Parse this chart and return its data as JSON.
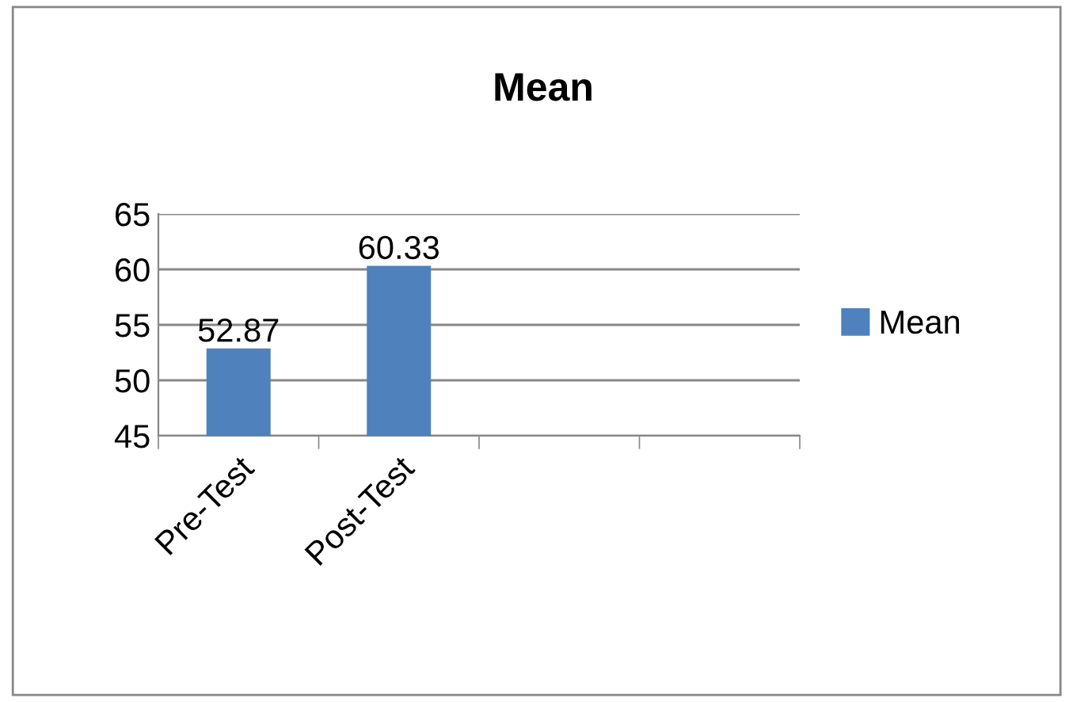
{
  "chart_data": {
    "type": "bar",
    "title": "Mean",
    "categories": [
      "Pre-Test",
      "Post-Test",
      null,
      null
    ],
    "series": [
      {
        "name": "Mean",
        "color": "#4f81bd",
        "values": [
          52.87,
          60.33,
          null,
          null
        ]
      }
    ],
    "ylim": [
      45,
      65
    ],
    "yticks": [
      45,
      50,
      55,
      60,
      65
    ],
    "grid": "y",
    "legend": "right",
    "data_labels": true
  }
}
